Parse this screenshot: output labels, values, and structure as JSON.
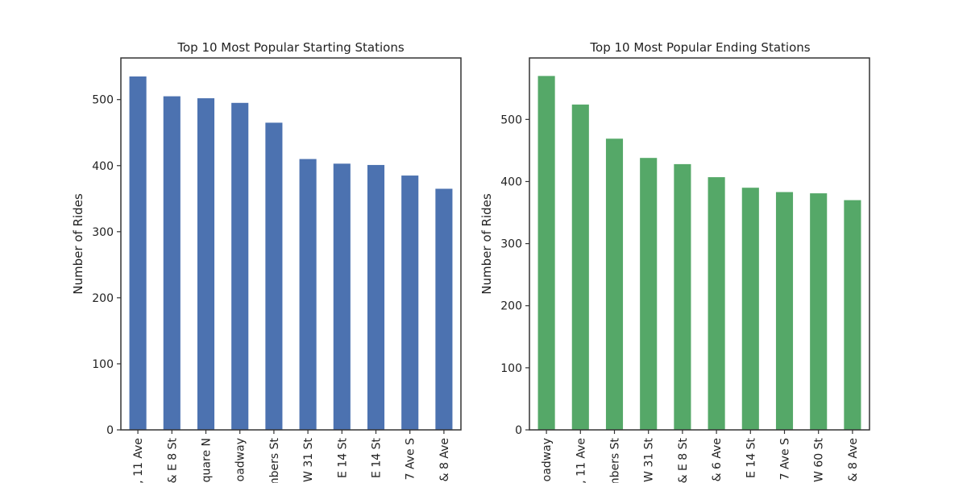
{
  "chart_data": [
    {
      "type": "bar",
      "title": "Top 10 Most Popular Starting Stations",
      "xlabel": "",
      "ylabel": "Number of Rides",
      "ylim": [
        0,
        563
      ],
      "yticks": [
        0,
        100,
        200,
        300,
        400,
        500
      ],
      "categories": [
        ", 11 Ave",
        "& E 8 St",
        "quare N",
        "oadway",
        "mbers St",
        "W 31 St",
        "E 14 St",
        "E 14 St",
        "7 Ave S",
        "& 8 Ave"
      ],
      "values": [
        535,
        505,
        502,
        495,
        465,
        410,
        403,
        401,
        385,
        365
      ],
      "color": "#4c72b0",
      "grid": false
    },
    {
      "type": "bar",
      "title": "Top 10 Most Popular Ending Stations",
      "xlabel": "",
      "ylabel": "Number of Rides",
      "ylim": [
        0,
        599
      ],
      "yticks": [
        0,
        100,
        200,
        300,
        400,
        500
      ],
      "categories": [
        "oadway",
        ", 11 Ave",
        "mbers St",
        "W 31 St",
        "& E 8 St",
        "& 6 Ave",
        "E 14 St",
        "7 Ave S",
        "W 60 St",
        "& 8 Ave"
      ],
      "values": [
        570,
        524,
        469,
        438,
        428,
        407,
        390,
        383,
        381,
        370
      ],
      "color": "#55a868",
      "grid": false
    }
  ]
}
